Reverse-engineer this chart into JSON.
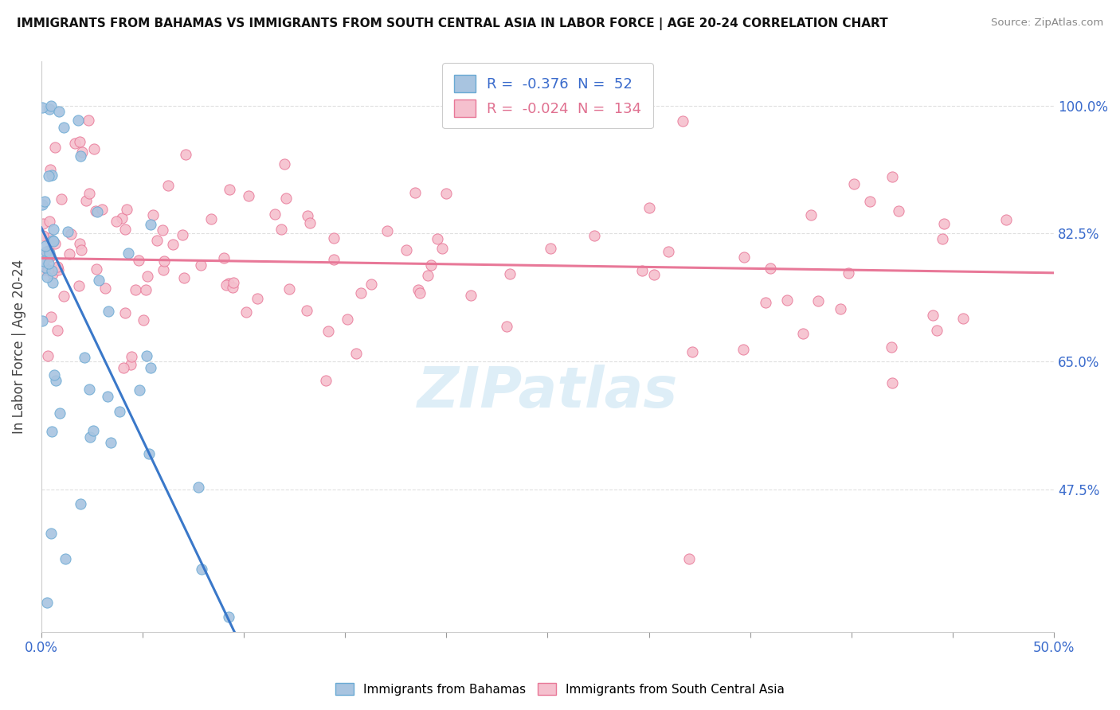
{
  "title": "IMMIGRANTS FROM BAHAMAS VS IMMIGRANTS FROM SOUTH CENTRAL ASIA IN LABOR FORCE | AGE 20-24 CORRELATION CHART",
  "source": "Source: ZipAtlas.com",
  "ylabel_axis_label": "In Labor Force | Age 20-24",
  "legend_blue_r": "-0.376",
  "legend_blue_n": "52",
  "legend_pink_r": "-0.024",
  "legend_pink_n": "134",
  "legend_label_blue": "Immigrants from Bahamas",
  "legend_label_pink": "Immigrants from South Central Asia",
  "blue_dot_color": "#a8c4e0",
  "blue_edge_color": "#6aaad4",
  "pink_dot_color": "#f5c0ce",
  "pink_edge_color": "#e87898",
  "blue_line_color": "#3a78c9",
  "pink_line_color": "#e87898",
  "dashed_line_color": "#a0b8d0",
  "text_blue": "#3a6bcc",
  "text_pink": "#e07090",
  "watermark_color": "#d0e8f5",
  "background_color": "#ffffff",
  "grid_color": "#dddddd",
  "ylabel_labels": [
    "100.0%",
    "82.5%",
    "65.0%",
    "47.5%"
  ],
  "ylabel_values": [
    1.0,
    0.825,
    0.65,
    0.475
  ],
  "xmin": 0.0,
  "xmax": 0.5,
  "ymin": 0.28,
  "ymax": 1.06,
  "blue_intercept": 0.833,
  "blue_slope": -5.8,
  "pink_intercept": 0.791,
  "pink_slope": -0.04
}
